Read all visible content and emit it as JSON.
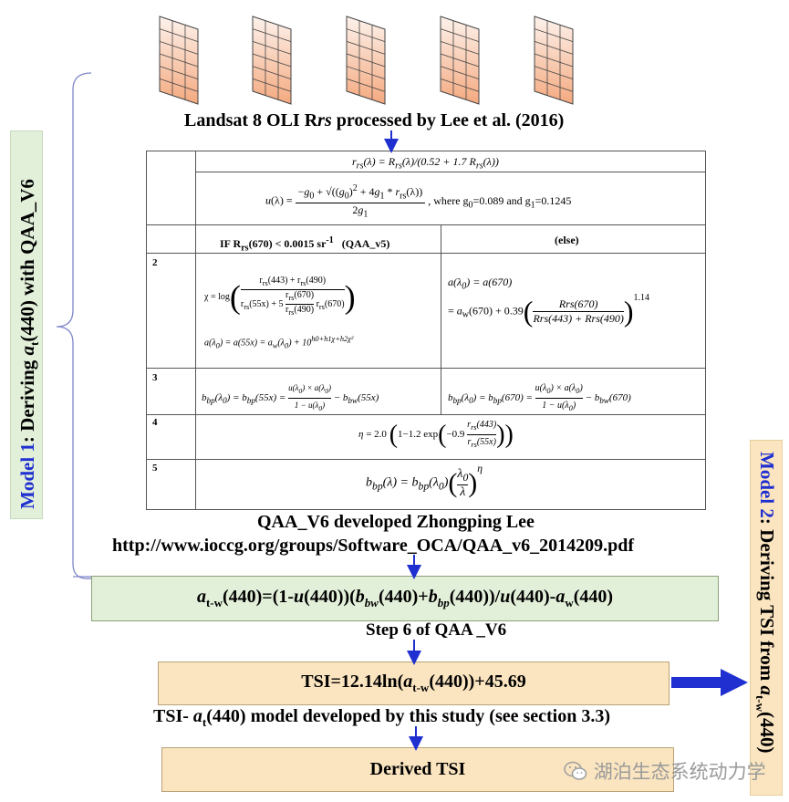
{
  "side_labels": {
    "left": "Model 1: Deriving a(440) with QAA_V6",
    "right": "Model 2: Deriving TSI from a(440)"
  },
  "top_caption": "Landsat 8 OLI Rrs processed by Lee et al. (2016)",
  "table": {
    "row1_eq1": "rrs(λ) = Rrs(λ)/(0.52 + 1.7 Rrs(λ))",
    "row1_eq2": "u(λ) = [−g0 + √((g0)² + 4g1 * rrs(λ))] / 2g1",
    "row1_note": ", where g0=0.089 and g1=0.1245",
    "header_left": "IF Rrs(670) < 0.0015 sr-1   (QAA_v5)",
    "header_right": "(else)",
    "row_numbers": [
      "2",
      "3",
      "4",
      "5"
    ],
    "row2_left_eq1": "χ = log( (rrs(443) + rrs(490)) / (rrs(55x) + 5 (rrs(670)/rrs(490)) rrs(670)) )",
    "row2_left_eq2": "a(λ0) = a(55x) = aw(λ0) + 10^(h0+h1χ+h2χ²)",
    "row2_right_eq1": "a(λ0) = a(670)",
    "row2_right_eq2": "= aw(670) + 0.39 ( Rrs(670) / (Rrs(443) + Rrs(490)) )^1.14",
    "row3_left": "bbp(λ0) = bbp(55x) = u(λ0)×a(λ0)/(1−u(λ0)) − bbw(55x)",
    "row3_right": "bbp(λ0) = bbp(670) = u(λ0)×a(λ0)/(1−u(λ0)) − bbw(670)",
    "row4": "η = 2.0 (1 − 1.2 exp(−0.9 rrs(443)/rrs(55x)))",
    "row5": "bbp(λ) = bbp(λ0) (λ0/λ)^η"
  },
  "qaa_caption_1": "QAA_V6 developed Zhongping Lee",
  "qaa_caption_2": "http://www.ioccg.org/groups/Software_OCA/QAA_v6_2014209.pdf",
  "step6_formula": "at-w(440)=(1-u(440))(bbw(440)+bbp(440))/u(440)-aw(440)",
  "step6_caption": "Step 6 of QAA _V6",
  "tsi_formula": "TSI=12.14ln(at-w(440))+45.69",
  "tsi_caption": "TSI- at(440) model developed by this study (see section 3.3)",
  "derived_label": "Derived TSI",
  "watermark": "湖泊生态系统动力学",
  "colors": {
    "green_fill": "#e2efd9",
    "orange_fill": "#fbe5c0",
    "arrow_blue": "#1f2fd0",
    "grid_fill_top": "#fde9dc",
    "grid_fill_bottom": "#f6b58e"
  },
  "icons": [
    "raster-grid-icon",
    "wechat-icon"
  ]
}
